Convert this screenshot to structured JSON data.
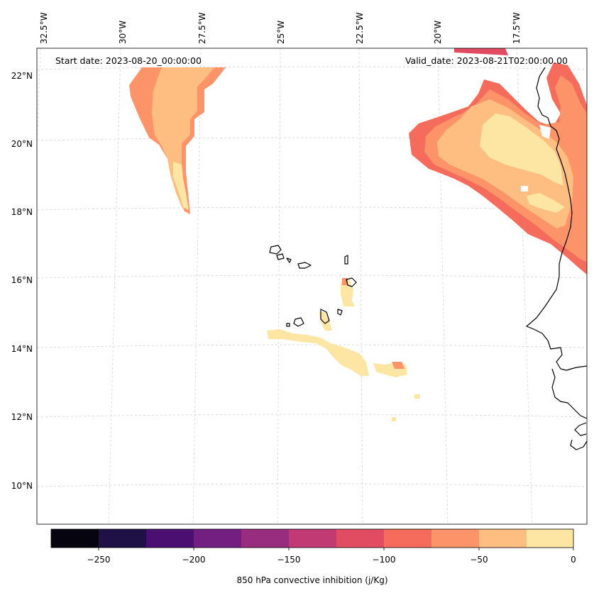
{
  "map": {
    "start_date_label": "Start date: 2023-08-20_00:00:00",
    "valid_date_label": "Valid_date: 2023-08-21T02:00:00.00",
    "lon_labels": [
      "32.5°W",
      "30°W",
      "27.5°W",
      "25°W",
      "22.5°W",
      "20°W",
      "17.5°W"
    ],
    "lat_labels": [
      "22°N",
      "20°N",
      "18°N",
      "16°N",
      "14°N",
      "12°N",
      "10°N"
    ]
  },
  "colorbar": {
    "title": "850 hPa convective inhibition (j/Kg)",
    "tick_labels": [
      "−250",
      "−200",
      "−150",
      "−100",
      "−50",
      "0"
    ],
    "colors": [
      "#05040f",
      "#1f1146",
      "#4b0f72",
      "#721f81",
      "#982d80",
      "#c13a73",
      "#e14c62",
      "#f66c5c",
      "#fd9469",
      "#febd81",
      "#fde5a4"
    ]
  }
}
